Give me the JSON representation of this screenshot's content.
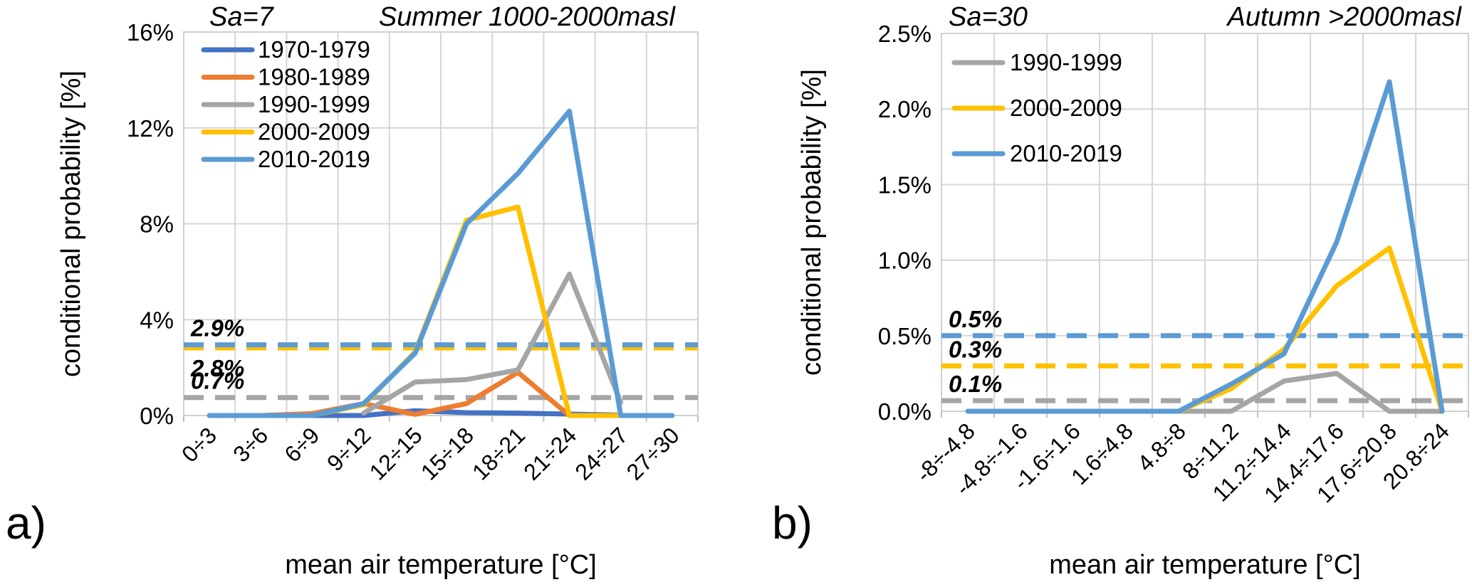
{
  "figure": {
    "panel_a_label": "a)",
    "panel_b_label": "b)"
  },
  "chart_data": [
    {
      "id": "a",
      "type": "line",
      "annotation": "Sa=7",
      "title": "Summer 1000-2000masl",
      "xlabel": "mean air temperature [°C]",
      "ylabel": "conditional probability [%]",
      "ylim": [
        0,
        16
      ],
      "grid": true,
      "legend_position": "top-left-inside",
      "yticks": [
        0,
        4,
        8,
        12,
        16
      ],
      "ytick_labels": [
        "0%",
        "4%",
        "8%",
        "12%",
        "16%"
      ],
      "categories": [
        "0÷3",
        "3÷6",
        "6÷9",
        "9÷12",
        "12÷15",
        "15÷18",
        "18÷21",
        "21÷24",
        "24÷27",
        "27÷30"
      ],
      "series": [
        {
          "name": "1970-1979",
          "color": "#4472C4",
          "values": [
            0,
            0,
            0,
            0,
            0.2,
            0.12,
            0.1,
            0.06,
            0.02,
            null
          ]
        },
        {
          "name": "1980-1989",
          "color": "#ED7D31",
          "values": [
            null,
            0,
            0.08,
            0.5,
            0.05,
            0.5,
            1.8,
            0,
            null,
            null
          ]
        },
        {
          "name": "1990-1999",
          "color": "#A5A5A5",
          "values": [
            null,
            null,
            null,
            0.1,
            1.4,
            1.5,
            1.9,
            5.9,
            0.55,
            null
          ]
        },
        {
          "name": "2000-2009",
          "color": "#FFC000",
          "values": [
            null,
            null,
            0,
            0.45,
            2.65,
            8.15,
            8.7,
            0,
            0,
            null
          ]
        },
        {
          "name": "2010-2019",
          "color": "#5B9BD5",
          "values": [
            0,
            0,
            0,
            0.5,
            2.6,
            8.0,
            10.1,
            12.7,
            0,
            0
          ]
        }
      ],
      "ref_lines": [
        {
          "label": "2.9%",
          "value": 2.95,
          "color": "#5B9BD5",
          "label_side": "above"
        },
        {
          "label": "2.8%",
          "value": 2.82,
          "color": "#FFC000",
          "label_side": "below"
        },
        {
          "label": "0.7%",
          "value": 0.75,
          "color": "#A5A5A5",
          "label_side": "above"
        }
      ]
    },
    {
      "id": "b",
      "type": "line",
      "annotation": "Sa=30",
      "title": "Autumn >2000masl",
      "xlabel": "mean air temperature [°C]",
      "ylabel": "conditional probability [%]",
      "ylim": [
        0,
        2.5
      ],
      "grid": true,
      "legend_position": "top-left-inside",
      "yticks": [
        0,
        0.5,
        1,
        1.5,
        2,
        2.5
      ],
      "ytick_labels": [
        "0.0%",
        "0.5%",
        "1.0%",
        "1.5%",
        "2.0%",
        "2.5%"
      ],
      "categories": [
        "-8÷-4.8",
        "-4.8÷-1.6",
        "-1.6÷1.6",
        "1.6÷4.8",
        "4.8÷8",
        "8÷11.2",
        "11.2÷14.4",
        "14.4÷17.6",
        "17.6÷20.8",
        "20.8÷24"
      ],
      "series": [
        {
          "name": "1990-1999",
          "color": "#A5A5A5",
          "values": [
            null,
            null,
            null,
            null,
            0,
            0,
            0.2,
            0.25,
            0,
            0
          ]
        },
        {
          "name": "2000-2009",
          "color": "#FFC000",
          "values": [
            null,
            null,
            null,
            null,
            0,
            0.15,
            0.41,
            0.83,
            1.08,
            0
          ]
        },
        {
          "name": "2010-2019",
          "color": "#5B9BD5",
          "values": [
            0,
            0,
            0,
            0,
            0,
            0.18,
            0.38,
            1.12,
            2.18,
            0
          ]
        }
      ],
      "ref_lines": [
        {
          "label": "0.5%",
          "value": 0.5,
          "color": "#5B9BD5",
          "label_side": "above"
        },
        {
          "label": "0.3%",
          "value": 0.3,
          "color": "#FFC000",
          "label_side": "above"
        },
        {
          "label": "0.1%",
          "value": 0.07,
          "color": "#A5A5A5",
          "label_side": "above"
        }
      ]
    }
  ]
}
